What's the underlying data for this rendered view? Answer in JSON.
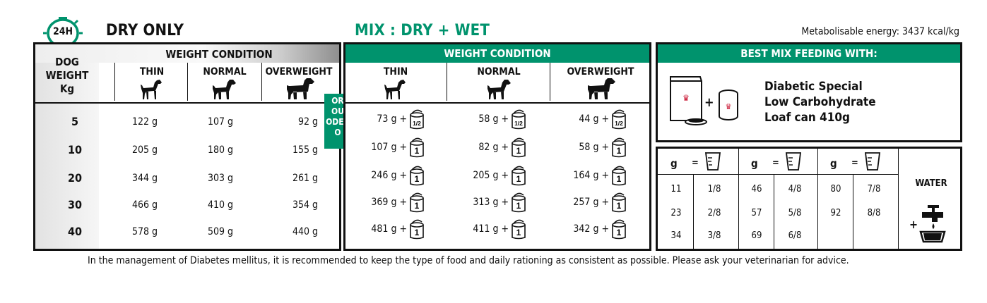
{
  "header": {
    "time_badge": "24H",
    "dry_only": "DRY ONLY",
    "mix": "MIX : DRY + WET",
    "energy": "Metabolisable energy: 3437 kcal/kg"
  },
  "dry_table": {
    "weight_header_lines": [
      "DOG",
      "WEIGHT",
      "Kg"
    ],
    "condition_title": "WEIGHT CONDITION",
    "columns": [
      "THIN",
      "NORMAL",
      "OVERWEIGHT"
    ],
    "weights": [
      "5",
      "10",
      "20",
      "30",
      "40"
    ],
    "rows": [
      [
        "122 g",
        "107 g",
        "92 g"
      ],
      [
        "205 g",
        "180 g",
        "155 g"
      ],
      [
        "344 g",
        "303 g",
        "261 g"
      ],
      [
        "466 g",
        "410 g",
        "354 g"
      ],
      [
        "578 g",
        "509 g",
        "440 g"
      ]
    ]
  },
  "or_box": {
    "lines": [
      "OR",
      "OU",
      "ODER",
      "O"
    ]
  },
  "mix_table": {
    "condition_title": "WEIGHT CONDITION",
    "columns": [
      "THIN",
      "NORMAL",
      "OVERWEIGHT"
    ],
    "rows": [
      [
        {
          "dry": "73 g +",
          "can": "1/2"
        },
        {
          "dry": "58 g +",
          "can": "1/2"
        },
        {
          "dry": "44 g +",
          "can": "1/2"
        }
      ],
      [
        {
          "dry": "107 g +",
          "can": "1"
        },
        {
          "dry": "82 g +",
          "can": "1"
        },
        {
          "dry": "58 g +",
          "can": "1"
        }
      ],
      [
        {
          "dry": "246 g +",
          "can": "1"
        },
        {
          "dry": "205 g +",
          "can": "1"
        },
        {
          "dry": "164 g +",
          "can": "1"
        }
      ],
      [
        {
          "dry": "369 g +",
          "can": "1"
        },
        {
          "dry": "313 g +",
          "can": "1"
        },
        {
          "dry": "257 g +",
          "can": "1"
        }
      ],
      [
        {
          "dry": "481 g +",
          "can": "1"
        },
        {
          "dry": "411 g +",
          "can": "1"
        },
        {
          "dry": "342 g +",
          "can": "1"
        }
      ]
    ]
  },
  "best_mix": {
    "title": "BEST MIX FEEDING WITH:",
    "lines": [
      "Diabetic Special",
      "Low Carbohydrate",
      "Loaf can 410g"
    ],
    "plus": "+"
  },
  "conversion": {
    "header": {
      "g": "g",
      "eq": "="
    },
    "groups": [
      [
        [
          "11",
          "1/8"
        ],
        [
          "23",
          "2/8"
        ],
        [
          "34",
          "3/8"
        ]
      ],
      [
        [
          "46",
          "4/8"
        ],
        [
          "57",
          "5/8"
        ],
        [
          "69",
          "6/8"
        ]
      ],
      [
        [
          "80",
          "7/8"
        ],
        [
          "92",
          "8/8"
        ],
        [
          "",
          ""
        ]
      ]
    ],
    "water": "WATER",
    "water_plus": "+"
  },
  "footer": "In the management of Diabetes mellitus, it is recommended to keep the type of food and daily rationing as consistent as possible. Please ask your veterinarian for advice.",
  "colors": {
    "green": "#00936d",
    "red": "#c8102e"
  },
  "icons": [
    "clock-24h-icon",
    "thin-dog-icon",
    "normal-dog-icon",
    "overweight-dog-icon",
    "can-icon",
    "cup-icon",
    "water-tap-icon",
    "kibble-bag-icon",
    "wet-can-icon"
  ]
}
